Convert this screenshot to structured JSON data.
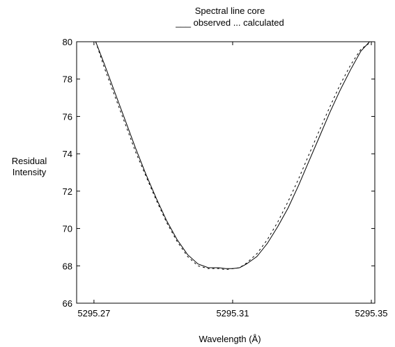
{
  "chart_data": {
    "type": "line",
    "title": "Spectral line core",
    "legend_text": "___ observed   ... calculated",
    "legend_placement": "top-center",
    "xlabel": "Wavelength (Å)",
    "ylabel_line1": "Residual",
    "ylabel_line2": "Intensity",
    "xlim": [
      5295.265,
      5295.351
    ],
    "ylim": [
      66,
      80
    ],
    "xticks": [
      5295.27,
      5295.31,
      5295.35
    ],
    "xtick_labels": [
      "5295.27",
      "5295.31",
      "5295.35"
    ],
    "yticks": [
      66,
      68,
      70,
      72,
      74,
      76,
      78,
      80
    ],
    "ytick_labels": [
      "66",
      "68",
      "70",
      "72",
      "74",
      "76",
      "78",
      "80"
    ],
    "grid": false,
    "series": [
      {
        "name": "observed",
        "style": "solid",
        "x": [
          5295.2705,
          5295.273,
          5295.276,
          5295.279,
          5295.282,
          5295.285,
          5295.288,
          5295.291,
          5295.294,
          5295.297,
          5295.3,
          5295.303,
          5295.306,
          5295.308,
          5295.31,
          5295.312,
          5295.314,
          5295.317,
          5295.32,
          5295.323,
          5295.326,
          5295.329,
          5295.332,
          5295.335,
          5295.338,
          5295.341,
          5295.344,
          5295.347,
          5295.3495
        ],
        "y": [
          80.0,
          78.8,
          77.3,
          75.8,
          74.3,
          72.9,
          71.6,
          70.4,
          69.4,
          68.6,
          68.1,
          67.9,
          67.9,
          67.85,
          67.85,
          67.9,
          68.1,
          68.5,
          69.2,
          70.1,
          71.1,
          72.3,
          73.6,
          74.9,
          76.2,
          77.4,
          78.5,
          79.5,
          80.0
        ]
      },
      {
        "name": "calculated",
        "style": "dashed",
        "x": [
          5295.2705,
          5295.273,
          5295.276,
          5295.279,
          5295.282,
          5295.285,
          5295.288,
          5295.291,
          5295.294,
          5295.297,
          5295.3,
          5295.303,
          5295.306,
          5295.308,
          5295.31,
          5295.312,
          5295.314,
          5295.317,
          5295.32,
          5295.323,
          5295.326,
          5295.329,
          5295.332,
          5295.335,
          5295.338,
          5295.341,
          5295.344,
          5295.347,
          5295.35
        ],
        "y": [
          80.0,
          78.6,
          77.1,
          75.6,
          74.1,
          72.8,
          71.5,
          70.3,
          69.3,
          68.5,
          68.0,
          67.85,
          67.85,
          67.8,
          67.85,
          67.9,
          68.15,
          68.65,
          69.4,
          70.35,
          71.45,
          72.65,
          73.95,
          75.25,
          76.5,
          77.7,
          78.75,
          79.6,
          80.0
        ]
      }
    ]
  },
  "colors": {
    "axis": "#000000",
    "line": "#000000",
    "background": "#ffffff"
  }
}
